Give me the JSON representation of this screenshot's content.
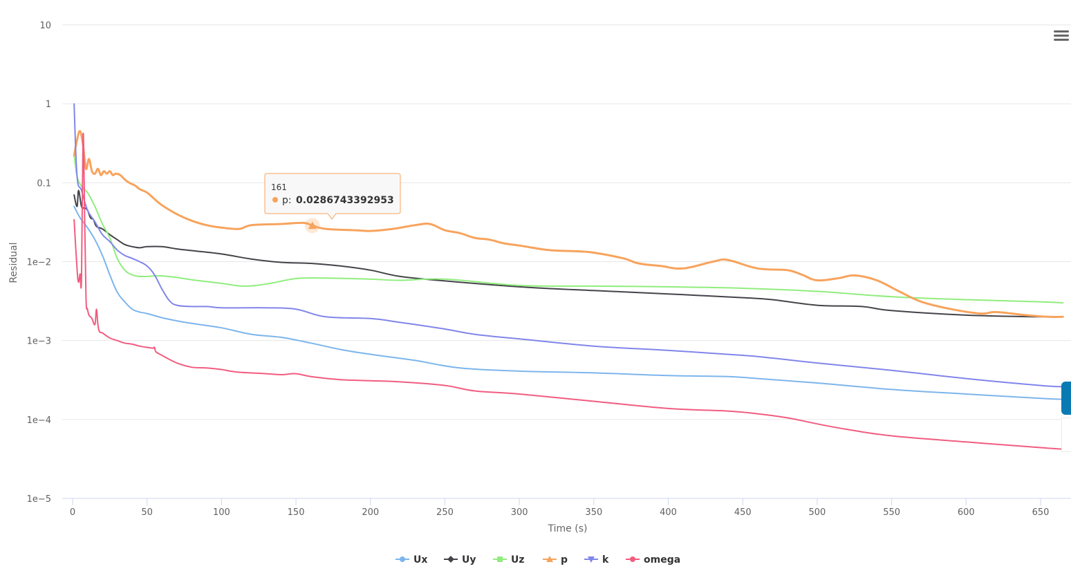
{
  "chart_data": {
    "type": "line",
    "title": "",
    "xlabel": "Time (s)",
    "ylabel": "Residual",
    "yscale": "log",
    "xlim": [
      -7,
      667
    ],
    "ylim": [
      1e-05,
      10
    ],
    "xticks": [
      0,
      50,
      100,
      150,
      200,
      250,
      300,
      350,
      400,
      450,
      500,
      550,
      600,
      650
    ],
    "yticks": [
      {
        "value": 10,
        "label": "10"
      },
      {
        "value": 1,
        "label": "1"
      },
      {
        "value": 0.1,
        "label": "0.1"
      },
      {
        "value": 0.01,
        "label": "1e−2"
      },
      {
        "value": 0.001,
        "label": "1e−3"
      },
      {
        "value": 0.0001,
        "label": "1e−4"
      },
      {
        "value": 1e-05,
        "label": "1e−5"
      }
    ],
    "grid": true,
    "legend_position": "bottom-center",
    "series": [
      {
        "name": "Ux",
        "color": "#7cb5ec",
        "marker": "circle",
        "x": [
          1,
          5,
          10,
          15,
          20,
          25,
          30,
          35,
          40,
          45,
          50,
          60,
          70,
          80,
          100,
          120,
          140,
          160,
          180,
          200,
          230,
          260,
          300,
          350,
          400,
          440,
          460,
          500,
          550,
          600,
          650,
          665
        ],
        "y": [
          0.05,
          0.036,
          0.027,
          0.019,
          0.012,
          0.0068,
          0.0041,
          0.0031,
          0.0025,
          0.0023,
          0.0022,
          0.00195,
          0.00178,
          0.00165,
          0.00145,
          0.0012,
          0.0011,
          0.00093,
          0.00077,
          0.00067,
          0.00056,
          0.00045,
          0.00041,
          0.00039,
          0.00036,
          0.00035,
          0.00033,
          0.00029,
          0.00024,
          0.00021,
          0.000185,
          0.00018
        ]
      },
      {
        "name": "Uy",
        "color": "#434348",
        "marker": "diamond",
        "x": [
          1,
          3,
          4,
          6,
          8,
          10,
          12,
          14,
          16,
          20,
          25,
          30,
          35,
          40,
          45,
          50,
          60,
          70,
          80,
          100,
          120,
          140,
          160,
          180,
          200,
          220,
          250,
          300,
          350,
          400,
          450,
          470,
          500,
          530,
          550,
          600,
          650,
          665
        ],
        "y": [
          0.07,
          0.05,
          0.08,
          0.05,
          0.048,
          0.045,
          0.036,
          0.034,
          0.028,
          0.026,
          0.022,
          0.019,
          0.0165,
          0.0155,
          0.015,
          0.0155,
          0.0155,
          0.0145,
          0.0138,
          0.0125,
          0.0108,
          0.0098,
          0.0095,
          0.0088,
          0.0078,
          0.0065,
          0.0057,
          0.0048,
          0.0043,
          0.0039,
          0.0035,
          0.0033,
          0.0028,
          0.0027,
          0.0024,
          0.0021,
          0.002,
          0.002
        ]
      },
      {
        "name": "Uz",
        "color": "#90ed7d",
        "marker": "square",
        "x": [
          1,
          3,
          6,
          10,
          15,
          20,
          25,
          30,
          35,
          40,
          45,
          50,
          60,
          70,
          80,
          100,
          115,
          130,
          150,
          170,
          200,
          220,
          250,
          300,
          350,
          400,
          450,
          500,
          550,
          600,
          650,
          665
        ],
        "y": [
          0.23,
          0.12,
          0.09,
          0.075,
          0.05,
          0.03,
          0.02,
          0.011,
          0.0078,
          0.0068,
          0.0065,
          0.0065,
          0.0066,
          0.0063,
          0.0059,
          0.0053,
          0.0049,
          0.0052,
          0.0061,
          0.0062,
          0.006,
          0.0058,
          0.006,
          0.005,
          0.0049,
          0.0048,
          0.0046,
          0.0042,
          0.0036,
          0.0033,
          0.0031,
          0.003
        ]
      },
      {
        "name": "p",
        "color": "#f7a35c",
        "marker": "triangle",
        "x": [
          1,
          3,
          5,
          7,
          9,
          11,
          13,
          15,
          17,
          19,
          21,
          23,
          25,
          27,
          29,
          32,
          35,
          38,
          42,
          45,
          50,
          55,
          60,
          70,
          80,
          90,
          100,
          112,
          120,
          140,
          155,
          161,
          170,
          190,
          200,
          215,
          230,
          240,
          250,
          260,
          270,
          280,
          290,
          300,
          320,
          340,
          350,
          370,
          380,
          395,
          410,
          430,
          440,
          460,
          480,
          490,
          500,
          515,
          525,
          540,
          555,
          570,
          590,
          610,
          620,
          640,
          655,
          665
        ],
        "y": [
          0.22,
          0.35,
          0.45,
          0.3,
          0.15,
          0.2,
          0.14,
          0.13,
          0.15,
          0.125,
          0.14,
          0.13,
          0.14,
          0.125,
          0.13,
          0.125,
          0.11,
          0.1,
          0.092,
          0.083,
          0.075,
          0.062,
          0.052,
          0.04,
          0.033,
          0.029,
          0.027,
          0.026,
          0.029,
          0.03,
          0.031,
          0.0287,
          0.026,
          0.025,
          0.0245,
          0.026,
          0.029,
          0.03,
          0.025,
          0.023,
          0.02,
          0.019,
          0.017,
          0.016,
          0.014,
          0.0135,
          0.013,
          0.011,
          0.0095,
          0.0088,
          0.0082,
          0.01,
          0.0105,
          0.0082,
          0.0078,
          0.0068,
          0.0058,
          0.0062,
          0.0067,
          0.0058,
          0.0042,
          0.0031,
          0.0025,
          0.0022,
          0.0023,
          0.0021,
          0.002,
          0.002
        ]
      },
      {
        "name": "k",
        "color": "#8085e9",
        "marker": "triangle-down",
        "x": [
          1,
          3,
          6,
          10,
          15,
          20,
          25,
          30,
          35,
          40,
          45,
          50,
          55,
          60,
          65,
          70,
          80,
          90,
          100,
          115,
          130,
          150,
          170,
          200,
          220,
          250,
          270,
          300,
          350,
          400,
          450,
          470,
          500,
          550,
          600,
          650,
          665
        ],
        "y": [
          1.0,
          0.12,
          0.08,
          0.045,
          0.032,
          0.022,
          0.018,
          0.014,
          0.012,
          0.011,
          0.01,
          0.0088,
          0.0068,
          0.0045,
          0.0032,
          0.0028,
          0.0027,
          0.0027,
          0.0026,
          0.0026,
          0.0026,
          0.0025,
          0.002,
          0.0019,
          0.0017,
          0.0014,
          0.0012,
          0.00105,
          0.00085,
          0.00075,
          0.00065,
          0.0006,
          0.00052,
          0.00042,
          0.00033,
          0.00027,
          0.00026
        ]
      },
      {
        "name": "omega",
        "color": "#f15c80",
        "marker": "circle",
        "x": [
          1,
          3,
          4,
          5,
          6,
          7,
          8,
          9,
          10,
          11,
          12,
          13,
          15,
          16,
          17,
          18,
          20,
          25,
          30,
          35,
          40,
          45,
          50,
          54,
          55,
          56,
          60,
          70,
          80,
          90,
          100,
          110,
          130,
          140,
          150,
          160,
          180,
          200,
          220,
          250,
          270,
          300,
          350,
          400,
          440,
          460,
          480,
          500,
          520,
          550,
          600,
          650,
          665
        ],
        "y": [
          0.034,
          0.008,
          0.0055,
          0.007,
          0.0062,
          0.4,
          0.05,
          0.0035,
          0.0025,
          0.0021,
          0.002,
          0.0019,
          0.0016,
          0.0025,
          0.0016,
          0.0013,
          0.00125,
          0.00108,
          0.001,
          0.00093,
          0.0009,
          0.00085,
          0.00082,
          0.0008,
          0.00082,
          0.00072,
          0.00065,
          0.00052,
          0.00046,
          0.00045,
          0.00043,
          0.0004,
          0.00038,
          0.00037,
          0.00038,
          0.00035,
          0.00032,
          0.00031,
          0.0003,
          0.00027,
          0.00023,
          0.00021,
          0.00017,
          0.000138,
          0.000128,
          0.000118,
          0.000105,
          8.8e-05,
          7.5e-05,
          6.2e-05,
          5.2e-05,
          4.4e-05,
          4.2e-05
        ]
      }
    ],
    "tooltip": {
      "x": 161,
      "series": "p",
      "value": "0.0286743392953",
      "label": "p: "
    }
  },
  "ui": {
    "menu_icon": "hamburger-menu-icon"
  }
}
